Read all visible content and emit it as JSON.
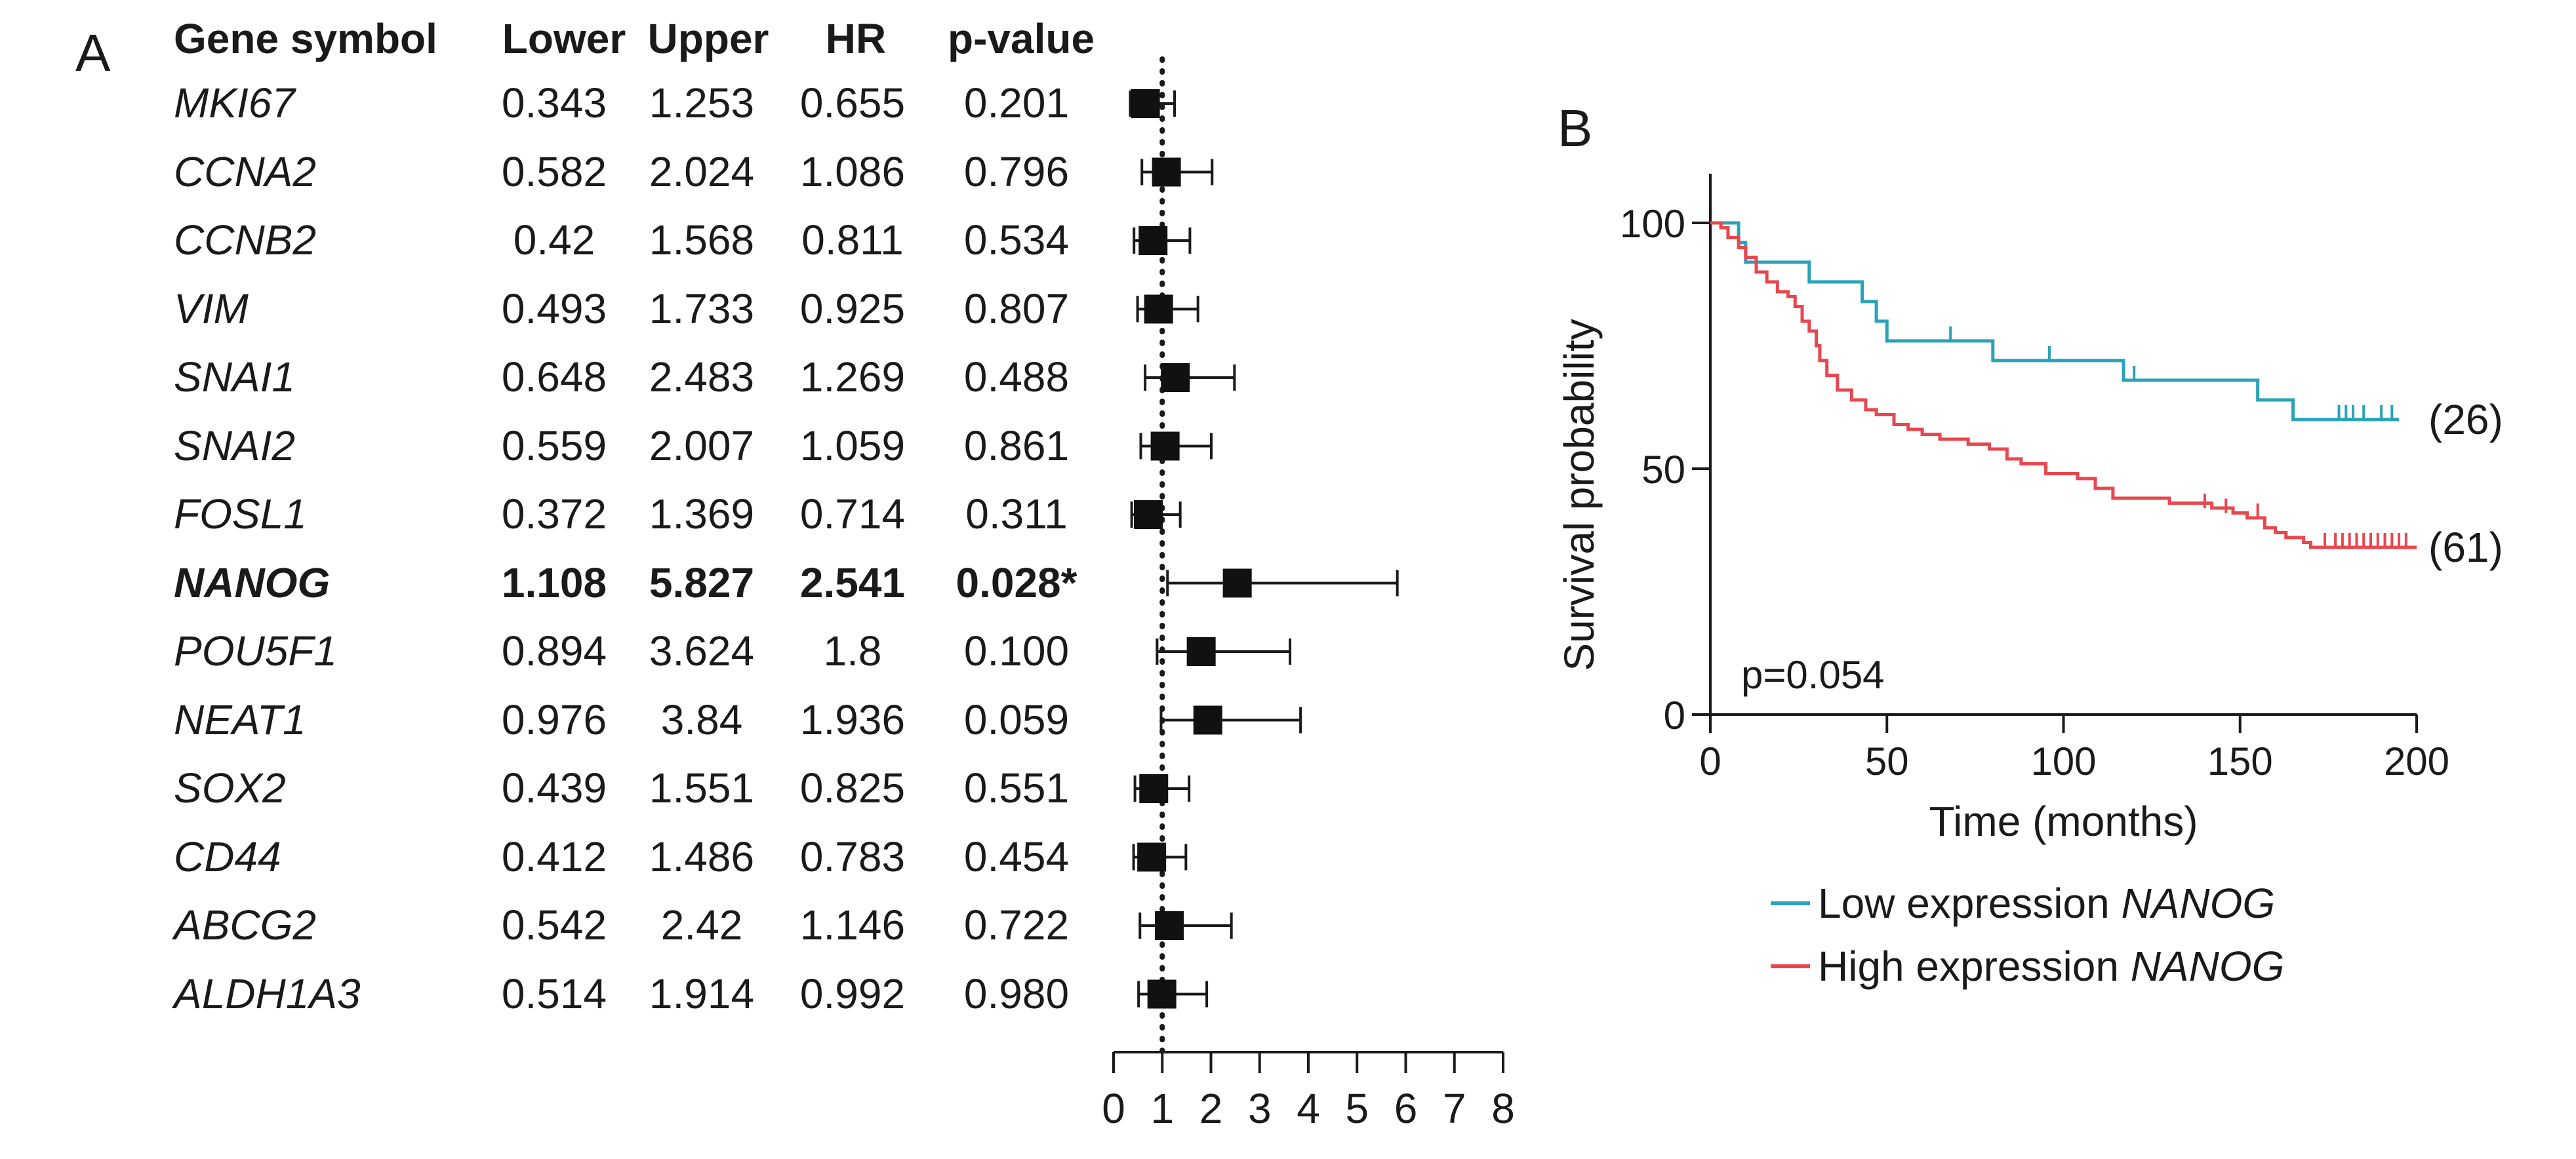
{
  "panels": {
    "a": "A",
    "b": "B"
  },
  "forest": {
    "headers": [
      "Gene symbol",
      "Lower",
      "Upper",
      "HR",
      "p-value"
    ],
    "highlight_gene": "NANOG",
    "rows": [
      {
        "gene": "MKI67",
        "lower": "0.343",
        "upper": "1.253",
        "hr": "0.655",
        "p": "0.201"
      },
      {
        "gene": "CCNA2",
        "lower": "0.582",
        "upper": "2.024",
        "hr": "1.086",
        "p": "0.796"
      },
      {
        "gene": "CCNB2",
        "lower": "0.42",
        "upper": "1.568",
        "hr": "0.811",
        "p": "0.534"
      },
      {
        "gene": "VIM",
        "lower": "0.493",
        "upper": "1.733",
        "hr": "0.925",
        "p": "0.807"
      },
      {
        "gene": "SNAI1",
        "lower": "0.648",
        "upper": "2.483",
        "hr": "1.269",
        "p": "0.488"
      },
      {
        "gene": "SNAI2",
        "lower": "0.559",
        "upper": "2.007",
        "hr": "1.059",
        "p": "0.861"
      },
      {
        "gene": "FOSL1",
        "lower": "0.372",
        "upper": "1.369",
        "hr": "0.714",
        "p": "0.311"
      },
      {
        "gene": "NANOG",
        "lower": "1.108",
        "upper": "5.827",
        "hr": "2.541",
        "p": "0.028*"
      },
      {
        "gene": "POU5F1",
        "lower": "0.894",
        "upper": "3.624",
        "hr": "1.8",
        "p": "0.100"
      },
      {
        "gene": "NEAT1",
        "lower": "0.976",
        "upper": "3.84",
        "hr": "1.936",
        "p": "0.059"
      },
      {
        "gene": "SOX2",
        "lower": "0.439",
        "upper": "1.551",
        "hr": "0.825",
        "p": "0.551"
      },
      {
        "gene": "CD44",
        "lower": "0.412",
        "upper": "1.486",
        "hr": "0.783",
        "p": "0.454"
      },
      {
        "gene": "ABCG2",
        "lower": "0.542",
        "upper": "2.42",
        "hr": "1.146",
        "p": "0.722"
      },
      {
        "gene": "ALDH1A3",
        "lower": "0.514",
        "upper": "1.914",
        "hr": "0.992",
        "p": "0.980"
      }
    ]
  },
  "chart_data": [
    {
      "type": "forest",
      "panel": "A",
      "x_range": [
        0,
        8
      ],
      "x_ticks": [
        "0",
        "1",
        "2",
        "3",
        "4",
        "5",
        "6",
        "7",
        "8"
      ],
      "reference_line": 1,
      "points": [
        {
          "gene": "MKI67",
          "hr": 0.655,
          "lower": 0.343,
          "upper": 1.253
        },
        {
          "gene": "CCNA2",
          "hr": 1.086,
          "lower": 0.582,
          "upper": 2.024
        },
        {
          "gene": "CCNB2",
          "hr": 0.811,
          "lower": 0.42,
          "upper": 1.568
        },
        {
          "gene": "VIM",
          "hr": 0.925,
          "lower": 0.493,
          "upper": 1.733
        },
        {
          "gene": "SNAI1",
          "hr": 1.269,
          "lower": 0.648,
          "upper": 2.483
        },
        {
          "gene": "SNAI2",
          "hr": 1.059,
          "lower": 0.559,
          "upper": 2.007
        },
        {
          "gene": "FOSL1",
          "hr": 0.714,
          "lower": 0.372,
          "upper": 1.369
        },
        {
          "gene": "NANOG",
          "hr": 2.541,
          "lower": 1.108,
          "upper": 5.827
        },
        {
          "gene": "POU5F1",
          "hr": 1.8,
          "lower": 0.894,
          "upper": 3.624
        },
        {
          "gene": "NEAT1",
          "hr": 1.936,
          "lower": 0.976,
          "upper": 3.84
        },
        {
          "gene": "SOX2",
          "hr": 0.825,
          "lower": 0.439,
          "upper": 1.551
        },
        {
          "gene": "CD44",
          "hr": 0.783,
          "lower": 0.412,
          "upper": 1.486
        },
        {
          "gene": "ABCG2",
          "hr": 1.146,
          "lower": 0.542,
          "upper": 2.42
        },
        {
          "gene": "ALDH1A3",
          "hr": 0.992,
          "lower": 0.514,
          "upper": 1.914
        }
      ]
    },
    {
      "type": "line",
      "subtype": "kaplan-meier",
      "panel": "B",
      "xlabel": "Time (months)",
      "ylabel": "Survival probability",
      "xlim": [
        0,
        200
      ],
      "ylim": [
        0,
        100
      ],
      "x_ticks": [
        "0",
        "50",
        "100",
        "150",
        "200"
      ],
      "y_ticks": [
        "0",
        "50",
        "100"
      ],
      "annotation": "p=0.054",
      "legend_position": "bottom",
      "series": [
        {
          "name": "Low expression NANOG",
          "legend_prefix": "Low expression ",
          "legend_gene": "NANOG",
          "end_label": "(26)",
          "color": "#2aa3b8",
          "steps": [
            [
              0,
              100
            ],
            [
              8,
              96
            ],
            [
              10,
              92
            ],
            [
              24,
              92
            ],
            [
              28,
              88
            ],
            [
              40,
              88
            ],
            [
              43,
              84
            ],
            [
              47,
              80
            ],
            [
              50,
              76
            ],
            [
              77,
              76
            ],
            [
              80,
              72
            ],
            [
              113,
              72
            ],
            [
              117,
              68
            ],
            [
              150,
              68
            ],
            [
              155,
              64
            ],
            [
              165,
              60
            ],
            [
              195,
              60
            ]
          ],
          "censored": [
            [
              68,
              76
            ],
            [
              96,
              72
            ],
            [
              120,
              68
            ],
            [
              155,
              64
            ],
            [
              178,
              60
            ],
            [
              180,
              60
            ],
            [
              182,
              60
            ],
            [
              185,
              60
            ],
            [
              190,
              60
            ],
            [
              193,
              60
            ]
          ]
        },
        {
          "name": "High expression NANOG",
          "legend_prefix": "High expression ",
          "legend_gene": "NANOG",
          "end_label": "(61)",
          "color": "#e8474e",
          "steps": [
            [
              0,
              100
            ],
            [
              3,
              99
            ],
            [
              5,
              97
            ],
            [
              8,
              95
            ],
            [
              10,
              93
            ],
            [
              13,
              90
            ],
            [
              16,
              88
            ],
            [
              19,
              86
            ],
            [
              22,
              85
            ],
            [
              24,
              83
            ],
            [
              26,
              80
            ],
            [
              28,
              78
            ],
            [
              30,
              75
            ],
            [
              31,
              72
            ],
            [
              33,
              69
            ],
            [
              36,
              66
            ],
            [
              40,
              64
            ],
            [
              44,
              62
            ],
            [
              47,
              61
            ],
            [
              52,
              59
            ],
            [
              56,
              58
            ],
            [
              60,
              57
            ],
            [
              65,
              56
            ],
            [
              73,
              55
            ],
            [
              79,
              54
            ],
            [
              84,
              52
            ],
            [
              88,
              51
            ],
            [
              95,
              49
            ],
            [
              104,
              48
            ],
            [
              109,
              46
            ],
            [
              114,
              44
            ],
            [
              130,
              43
            ],
            [
              142,
              42
            ],
            [
              148,
              41
            ],
            [
              152,
              40
            ],
            [
              157,
              38
            ],
            [
              160,
              37
            ],
            [
              163,
              36
            ],
            [
              168,
              35
            ],
            [
              170,
              34
            ],
            [
              200,
              34
            ]
          ],
          "censored": [
            [
              140,
              42
            ],
            [
              146,
              41
            ],
            [
              155,
              40
            ],
            [
              174,
              34
            ],
            [
              177,
              34
            ],
            [
              179,
              34
            ],
            [
              181,
              34
            ],
            [
              183,
              34
            ],
            [
              185,
              34
            ],
            [
              187,
              34
            ],
            [
              189,
              34
            ],
            [
              191,
              34
            ],
            [
              193,
              34
            ],
            [
              195,
              34
            ],
            [
              197,
              34
            ]
          ]
        }
      ]
    }
  ]
}
